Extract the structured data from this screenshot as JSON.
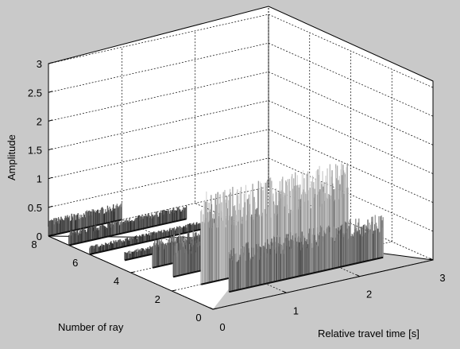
{
  "chart_data": {
    "type": "surface3d",
    "title": "",
    "xlabel": "Relative travel time [s]",
    "ylabel": "Number of ray",
    "zlabel": "Amplitude",
    "xlim": [
      0,
      3
    ],
    "ylim": [
      0,
      8
    ],
    "zlim": [
      0,
      3
    ],
    "x_ticks": [
      "0",
      "1",
      "2",
      "3"
    ],
    "y_ticks": [
      "0",
      "2",
      "4",
      "6",
      "8"
    ],
    "z_ticks": [
      "0",
      "0.5",
      "1",
      "1.5",
      "2",
      "2.5",
      "3"
    ],
    "grid": true,
    "colormap": "gray",
    "traces": [
      {
        "ray": 8,
        "t_start": 0.0,
        "t_end": 1.0,
        "amplitude": 0.3
      },
      {
        "ray": 7,
        "t_start": 0.0,
        "t_end": 1.6,
        "amplitude": 0.25
      },
      {
        "ray": 6,
        "t_start": 0.0,
        "t_end": 1.9,
        "amplitude": 0.15
      },
      {
        "ray": 5,
        "t_start": 0.2,
        "t_end": 2.0,
        "amplitude": 0.15
      },
      {
        "ray": 4,
        "t_start": 0.3,
        "t_end": 2.5,
        "amplitude": 0.5
      },
      {
        "ray": 3,
        "t_start": 0.3,
        "t_end": 2.6,
        "amplitude": 0.6
      },
      {
        "ray": 2,
        "t_start": 0.4,
        "t_end": 2.4,
        "amplitude": 1.6
      },
      {
        "ray": 1,
        "t_start": 0.5,
        "t_end": 2.6,
        "amplitude": 0.8
      }
    ]
  }
}
